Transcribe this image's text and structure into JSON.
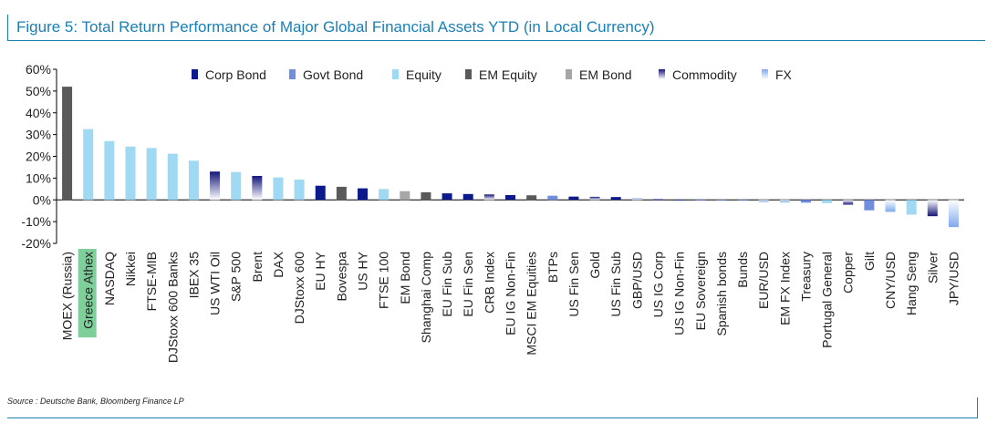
{
  "figure": {
    "title": "Figure 5: Total Return Performance of Major Global Financial Assets YTD (in Local Currency)",
    "source": "Source : Deutsche Bank, Bloomberg Finance LP"
  },
  "colors": {
    "frame": "#1a7fb5",
    "Corp Bond": "#0d1a8c",
    "Govt Bond": "#6f8fde",
    "Equity": "#9fd9f3",
    "EM Equity": "#5a5a5a",
    "EM Bond": "#a6a6a6",
    "Commodity": "#14167a",
    "FX": "#7fa9ec",
    "highlight": "#7ecf9a"
  },
  "chart_data": {
    "type": "bar",
    "title": "",
    "xlabel": "",
    "ylabel": "",
    "ylim": [
      -0.2,
      0.6
    ],
    "yticks": [
      "60%",
      "50%",
      "40%",
      "30%",
      "20%",
      "10%",
      "0%",
      "-10%",
      "-20%"
    ],
    "ytick_values": [
      0.6,
      0.5,
      0.4,
      0.3,
      0.2,
      0.1,
      0.0,
      -0.1,
      -0.2
    ],
    "legend_position": "top",
    "legend": [
      "Corp Bond",
      "Govt Bond",
      "Equity",
      "EM Equity",
      "EM Bond",
      "Commodity",
      "FX"
    ],
    "highlighted_category": "Greece Athex",
    "categories": [
      "MOEX (Russia)",
      "Greece Athex",
      "NASDAQ",
      "Nikkei",
      "FTSE-MIB",
      "DJStoxx 600 Banks",
      "IBEX 35",
      "US WTI Oil",
      "S&P 500",
      "Brent",
      "DAX",
      "DJStoxx 600",
      "EU HY",
      "Bovespa",
      "US HY",
      "FTSE 100",
      "EM Bond",
      "Shanghai Comp",
      "EU Fin Sub",
      "EU Fin Sen",
      "CRB Index",
      "EU IG Non-Fin",
      "MSCI EM Equities",
      "BTPs",
      "US Fin Sen",
      "Gold",
      "US Fin Sub",
      "GBP/USD",
      "US IG Corp",
      "US IG Non-Fin",
      "EU Sovereign",
      "Spanish bonds",
      "Bunds",
      "EUR/USD",
      "EM FX Index",
      "Treasury",
      "Portugal General",
      "Copper",
      "Gilt",
      "CNY/USD",
      "Hang Seng",
      "Silver",
      "JPY/USD"
    ],
    "values": [
      0.52,
      0.325,
      0.27,
      0.245,
      0.238,
      0.212,
      0.18,
      0.13,
      0.128,
      0.11,
      0.103,
      0.093,
      0.065,
      0.06,
      0.053,
      0.05,
      0.04,
      0.035,
      0.03,
      0.027,
      0.025,
      0.022,
      0.021,
      0.019,
      0.015,
      0.014,
      0.013,
      0.008,
      0.003,
      0.001,
      0.0,
      -0.002,
      -0.003,
      -0.01,
      -0.012,
      -0.013,
      -0.015,
      -0.022,
      -0.048,
      -0.055,
      -0.068,
      -0.075,
      -0.125
    ],
    "asset_classes": [
      "EM Equity",
      "Equity",
      "Equity",
      "Equity",
      "Equity",
      "Equity",
      "Equity",
      "Commodity",
      "Equity",
      "Commodity",
      "Equity",
      "Equity",
      "Corp Bond",
      "EM Equity",
      "Corp Bond",
      "Equity",
      "EM Bond",
      "EM Equity",
      "Corp Bond",
      "Corp Bond",
      "Commodity",
      "Corp Bond",
      "EM Equity",
      "Govt Bond",
      "Corp Bond",
      "Commodity",
      "Corp Bond",
      "FX",
      "Corp Bond",
      "Corp Bond",
      "Govt Bond",
      "Govt Bond",
      "Govt Bond",
      "FX",
      "FX",
      "Govt Bond",
      "Equity",
      "Commodity",
      "Govt Bond",
      "FX",
      "Equity",
      "Commodity",
      "FX"
    ]
  }
}
